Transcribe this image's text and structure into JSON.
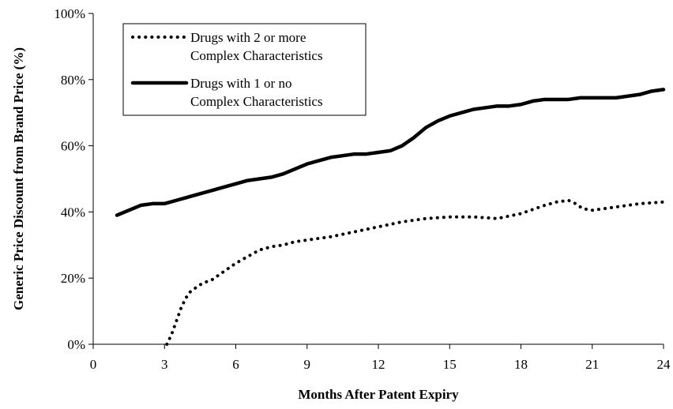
{
  "chart_data": {
    "type": "line",
    "xlabel": "Months After Patent Expiry",
    "ylabel": "Generic Price Discount from Brand Price (%)",
    "xlim": [
      0,
      24
    ],
    "ylim": [
      0,
      100
    ],
    "x_ticks": [
      0,
      3,
      6,
      9,
      12,
      15,
      18,
      21,
      24
    ],
    "y_ticks": [
      0,
      20,
      40,
      60,
      80,
      100
    ],
    "y_tick_labels": [
      "0%",
      "20%",
      "40%",
      "60%",
      "80%",
      "100%"
    ],
    "grid": false,
    "legend_position": "top-left",
    "series": [
      {
        "name_lines": [
          "Drugs with 2 or more",
          "Complex Characteristics"
        ],
        "style": "dotted",
        "color": "#000000",
        "x": [
          3.1,
          3.3,
          3.5,
          3.7,
          3.9,
          4.1,
          4.3,
          4.5,
          4.8,
          5.0,
          5.3,
          5.6,
          6.0,
          6.5,
          7.0,
          7.5,
          8.0,
          8.5,
          9.0,
          10.0,
          11.0,
          12.0,
          13.0,
          14.0,
          15.0,
          16.0,
          17.0,
          18.0,
          19.0,
          19.5,
          20.0,
          20.3,
          20.6,
          21.0,
          21.5,
          22.0,
          23.0,
          24.0
        ],
        "y": [
          0,
          3,
          7,
          11,
          14,
          16,
          17,
          18,
          19,
          19.5,
          21,
          22.5,
          24.5,
          26.5,
          28.5,
          29.5,
          30,
          31,
          31.5,
          32.5,
          34,
          35.5,
          37,
          38,
          38.5,
          38.5,
          38,
          39.5,
          42,
          43,
          43.5,
          42.5,
          41,
          40.5,
          41,
          41.5,
          42.5,
          43
        ]
      },
      {
        "name_lines": [
          "Drugs with 1 or no",
          "Complex Characteristics"
        ],
        "style": "solid",
        "color": "#000000",
        "x": [
          1,
          1.5,
          2,
          2.5,
          3,
          3.5,
          4,
          4.5,
          5,
          5.5,
          6,
          6.5,
          7,
          7.5,
          8,
          8.5,
          9,
          9.5,
          10,
          10.5,
          11,
          11.5,
          12,
          12.5,
          13,
          13.5,
          14,
          14.5,
          15,
          15.5,
          16,
          16.5,
          17,
          17.5,
          18,
          18.5,
          19,
          19.5,
          20,
          20.5,
          21,
          21.5,
          22,
          22.5,
          23,
          23.5,
          24
        ],
        "y": [
          39,
          40.5,
          42,
          42.5,
          42.5,
          43.5,
          44.5,
          45.5,
          46.5,
          47.5,
          48.5,
          49.5,
          50,
          50.5,
          51.5,
          53,
          54.5,
          55.5,
          56.5,
          57,
          57.5,
          57.5,
          58,
          58.5,
          60,
          62.5,
          65.5,
          67.5,
          69,
          70,
          71,
          71.5,
          72,
          72,
          72.5,
          73.5,
          74,
          74,
          74,
          74.5,
          74.5,
          74.5,
          74.5,
          75,
          75.5,
          76.5,
          77
        ]
      }
    ]
  }
}
